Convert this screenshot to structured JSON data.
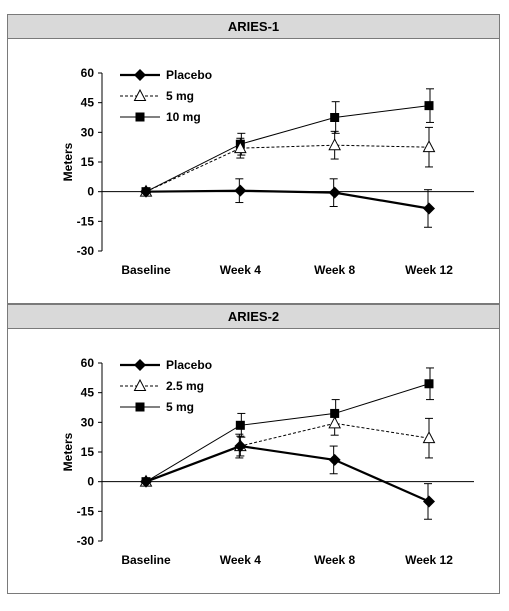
{
  "chart_data": [
    {
      "type": "line",
      "title": "ARIES-1",
      "ylabel": "Meters",
      "xlabel": "",
      "categories": [
        "Baseline",
        "Week 4",
        "Week 8",
        "Week 12"
      ],
      "ylim": [
        -30,
        60
      ],
      "yticks": [
        60,
        45,
        30,
        15,
        0,
        -15,
        -30
      ],
      "legend_position": "top-left",
      "series": [
        {
          "name": "Placebo",
          "marker": "diamond",
          "line": "solid-thick",
          "values": [
            0,
            0.5,
            -0.5,
            -8.5
          ],
          "error": [
            null,
            6,
            7,
            9.5
          ]
        },
        {
          "name": "5 mg",
          "marker": "triangle-open",
          "line": "dotted",
          "values": [
            0,
            22,
            23.5,
            22.5
          ],
          "error": [
            null,
            5,
            7,
            10
          ]
        },
        {
          "name": "10 mg",
          "marker": "square",
          "line": "solid",
          "values": [
            0,
            24,
            37.5,
            43.5
          ],
          "error": [
            null,
            5.5,
            8,
            8.5
          ]
        }
      ]
    },
    {
      "type": "line",
      "title": "ARIES-2",
      "ylabel": "Meters",
      "xlabel": "",
      "categories": [
        "Baseline",
        "Week 4",
        "Week 8",
        "Week 12"
      ],
      "ylim": [
        -30,
        60
      ],
      "yticks": [
        60,
        45,
        30,
        15,
        0,
        -15,
        -30
      ],
      "legend_position": "top-left",
      "series": [
        {
          "name": "Placebo",
          "marker": "diamond",
          "line": "solid-thick",
          "values": [
            0,
            18,
            11,
            -10
          ],
          "error": [
            null,
            6,
            7,
            9
          ]
        },
        {
          "name": "2.5 mg",
          "marker": "triangle-open",
          "line": "dotted",
          "values": [
            0,
            18,
            29.5,
            22
          ],
          "error": [
            null,
            5,
            6,
            10
          ]
        },
        {
          "name": "5 mg",
          "marker": "square",
          "line": "solid",
          "values": [
            0,
            28.5,
            34.5,
            49.5
          ],
          "error": [
            null,
            6,
            7,
            8
          ]
        }
      ]
    }
  ]
}
